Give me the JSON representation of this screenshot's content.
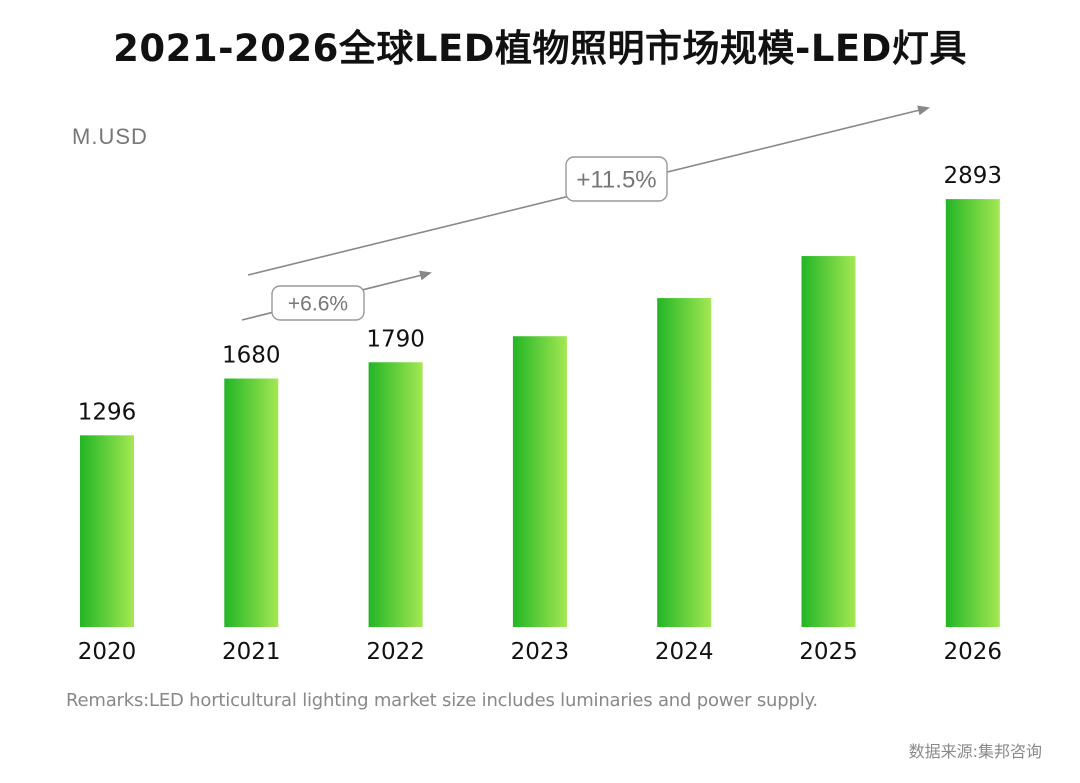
{
  "chart_data": {
    "type": "bar",
    "title": "2021-2026全球LED植物照明市场规模-LED灯具",
    "ylabel": "M.USD",
    "xlabel": "",
    "categories": [
      "2020",
      "2021",
      "2022",
      "2023",
      "2024",
      "2025",
      "2026"
    ],
    "values": [
      1296,
      1680,
      1790,
      1966,
      2224,
      2508,
      2893
    ],
    "value_labels": [
      "1296",
      "1680",
      "1790",
      null,
      null,
      null,
      "2893"
    ],
    "ylim": [
      0,
      3000
    ],
    "grid": false,
    "bar_gradient": [
      "#22b526",
      "#a4e852"
    ],
    "annotations": [
      {
        "label": "+6.6%",
        "from": "2021",
        "to": "2022",
        "kind": "growth-arrow"
      },
      {
        "label": "+11.5%",
        "from": "2021",
        "to": "2026",
        "kind": "growth-arrow"
      }
    ],
    "remarks": "Remarks:LED horticultural lighting market size includes luminaries and power supply.",
    "source": "数据来源:集邦咨询"
  }
}
